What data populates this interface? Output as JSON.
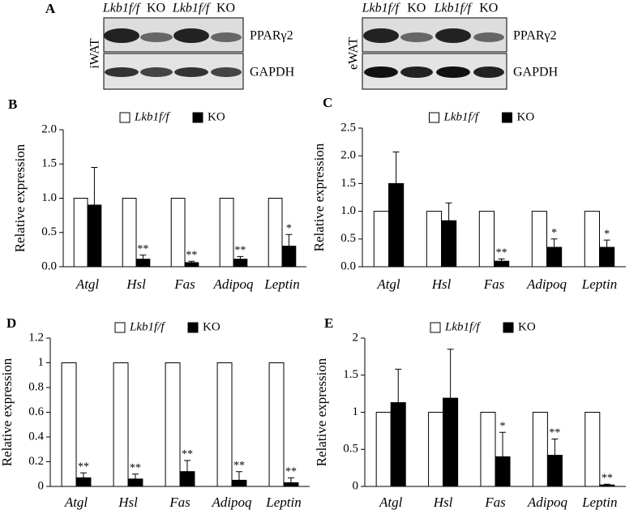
{
  "blots": [
    {
      "tissue": "iWAT",
      "lanes": [
        "Lkb1f/f",
        "KO",
        "Lkb1f/f",
        "KO"
      ],
      "proteins": [
        "PPARγ2",
        "GAPDH"
      ]
    },
    {
      "tissue": "eWAT",
      "lanes": [
        "Lkb1f/f",
        "KO",
        "Lkb1f/f",
        "KO"
      ],
      "proteins": [
        "PPARγ2",
        "GAPDH"
      ]
    }
  ],
  "panel_a": "A",
  "chart_data": [
    {
      "type": "bar",
      "panel": "B",
      "ylabel": "Relative expression",
      "categories": [
        "Atgl",
        "Hsl",
        "Fas",
        "Adipoq",
        "Leptin"
      ],
      "series": [
        {
          "name": "Lkb1f/f",
          "color": "#ffffff",
          "values": [
            1,
            1,
            1,
            1,
            1
          ]
        },
        {
          "name": "KO",
          "color": "#000000",
          "values": [
            0.9,
            0.11,
            0.06,
            0.11,
            0.3
          ],
          "error": [
            0.55,
            0.06,
            0.02,
            0.04,
            0.17
          ]
        }
      ],
      "significance": [
        null,
        "**",
        "**",
        "**",
        "*"
      ],
      "ylim": [
        0,
        2
      ],
      "yticks": [
        {
          "value": 0,
          "label": "0.0"
        },
        {
          "value": 0.5,
          "label": "0.5"
        },
        {
          "value": 1,
          "label": "1.0"
        },
        {
          "value": 1.5,
          "label": "1.5"
        },
        {
          "value": 2,
          "label": "2.0"
        }
      ]
    },
    {
      "type": "bar",
      "panel": "C",
      "ylabel": "Relative expression",
      "categories": [
        "Atgl",
        "Hsl",
        "Fas",
        "Adipoq",
        "Leptin"
      ],
      "series": [
        {
          "name": "Lkb1f/f",
          "color": "#ffffff",
          "values": [
            1,
            1,
            1,
            1,
            1
          ]
        },
        {
          "name": "KO",
          "color": "#000000",
          "values": [
            1.5,
            0.83,
            0.1,
            0.35,
            0.35
          ],
          "error": [
            0.57,
            0.32,
            0.04,
            0.15,
            0.13
          ]
        }
      ],
      "significance": [
        null,
        null,
        "**",
        "*",
        "*"
      ],
      "ylim": [
        0,
        2.5
      ],
      "yticks": [
        {
          "value": 0,
          "label": "0.0"
        },
        {
          "value": 0.5,
          "label": "0.5"
        },
        {
          "value": 1,
          "label": "1.0"
        },
        {
          "value": 1.5,
          "label": "1.5"
        },
        {
          "value": 2,
          "label": "2.0"
        },
        {
          "value": 2.5,
          "label": "2.5"
        }
      ]
    },
    {
      "type": "bar",
      "panel": "D",
      "ylabel": "Relative expression",
      "categories": [
        "Atgl",
        "Hsl",
        "Fas",
        "Adipoq",
        "Leptin"
      ],
      "series": [
        {
          "name": "Lkb1f/f",
          "color": "#ffffff",
          "values": [
            1,
            1,
            1,
            1,
            1
          ]
        },
        {
          "name": "KO",
          "color": "#000000",
          "values": [
            0.07,
            0.06,
            0.12,
            0.05,
            0.03
          ],
          "error": [
            0.04,
            0.04,
            0.09,
            0.07,
            0.04
          ]
        }
      ],
      "significance": [
        "**",
        "**",
        "**",
        "**",
        "**"
      ],
      "ylim": [
        0,
        1.2
      ],
      "yticks": [
        0,
        0.2,
        0.4,
        0.6,
        0.8,
        1,
        1.2
      ]
    },
    {
      "type": "bar",
      "panel": "E",
      "ylabel": "Relative expression",
      "categories": [
        "Atgl",
        "Hsl",
        "Fas",
        "Adipoq",
        "Leptin"
      ],
      "series": [
        {
          "name": "Lkb1f/f",
          "color": "#ffffff",
          "values": [
            1,
            1,
            1,
            1,
            1
          ]
        },
        {
          "name": "KO",
          "color": "#000000",
          "values": [
            1.13,
            1.19,
            0.4,
            0.42,
            0.02
          ],
          "error": [
            0.45,
            0.66,
            0.33,
            0.22,
            0.01
          ]
        }
      ],
      "significance": [
        null,
        null,
        "*",
        "**",
        "**"
      ],
      "ylim": [
        0,
        2
      ],
      "yticks": [
        0,
        0.5,
        1,
        1.5,
        2
      ]
    }
  ]
}
